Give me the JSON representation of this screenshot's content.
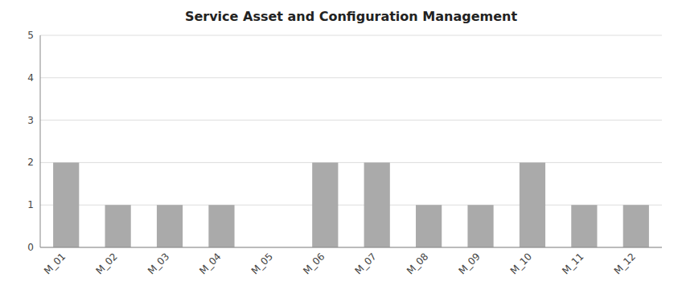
{
  "chart_data": {
    "type": "bar",
    "title": "Service Asset and Configuration Management",
    "categories": [
      "M_01",
      "M_02",
      "M_03",
      "M_04",
      "M_05",
      "M_06",
      "M_07",
      "M_08",
      "M_09",
      "M_10",
      "M_11",
      "M_12"
    ],
    "values": [
      2,
      1,
      1,
      1,
      0,
      2,
      2,
      1,
      1,
      2,
      1,
      1
    ],
    "color": "#aaaaaa",
    "ylim": [
      0,
      5
    ],
    "yticks": [
      0,
      1,
      2,
      3,
      4,
      5
    ],
    "grid": true
  }
}
